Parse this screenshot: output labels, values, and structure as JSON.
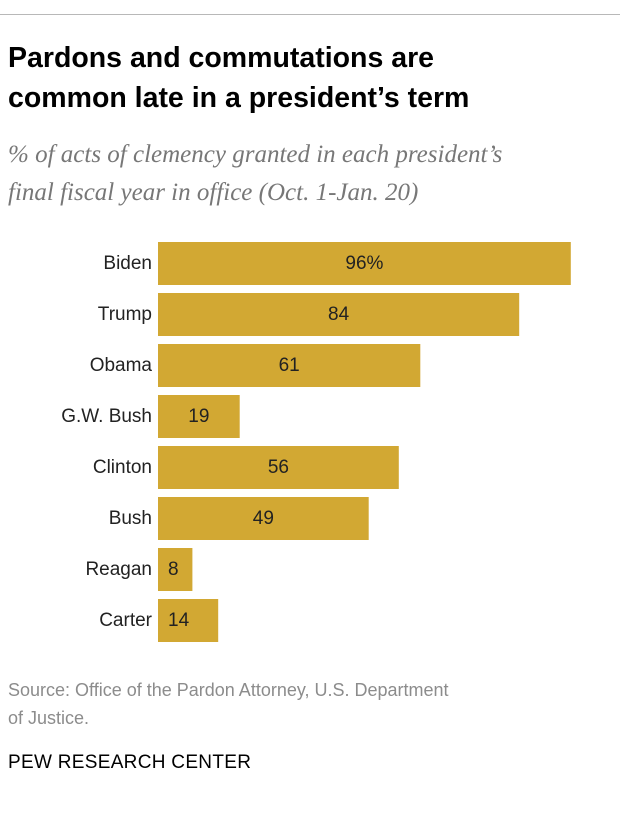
{
  "title_line1": "Pardons and commutations are",
  "title_line2": "common late in a president’s term",
  "subtitle_line1": "% of acts of clemency granted in each president’s",
  "subtitle_line2": "final fiscal year in office (Oct. 1-Jan. 20)",
  "source_line1": "Source: Office of the Pardon Attorney, U.S. Department",
  "source_line2": "of Justice.",
  "logo": "PEW RESEARCH CENTER",
  "colors": {
    "bar": "#d2a833",
    "label": "#222222"
  },
  "chart_data": {
    "type": "bar",
    "orientation": "horizontal",
    "categories": [
      "Biden",
      "Trump",
      "Obama",
      "G.W. Bush",
      "Clinton",
      "Bush",
      "Reagan",
      "Carter"
    ],
    "values": [
      96,
      84,
      61,
      19,
      56,
      49,
      8,
      14
    ],
    "value_labels": [
      "96%",
      "84",
      "61",
      "19",
      "56",
      "49",
      "8",
      "14"
    ],
    "xlim": [
      0,
      100
    ],
    "grid": false,
    "legend": "none"
  }
}
